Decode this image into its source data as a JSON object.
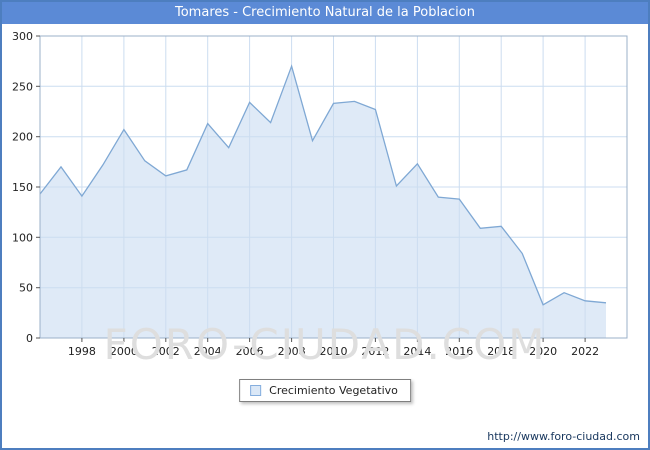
{
  "title": "Tomares - Crecimiento Natural de la Poblacion",
  "legend": {
    "label": "Crecimiento Vegetativo"
  },
  "watermark": "FORO-CIUDAD.COM",
  "footer_url": "http://www.foro-ciudad.com",
  "colors": {
    "frame": "#4d7ebf",
    "titlebar_bg": "#5b8ad6",
    "titlebar_text": "#ffffff",
    "grid": "#ccddf0",
    "axis": "#9bb0c8",
    "line": "#7fa8d4",
    "fill": "#dfeaf7",
    "tick": "#555555",
    "label": "#222222"
  },
  "chart_data": {
    "type": "area",
    "title": "Tomares - Crecimiento Natural de la Poblacion",
    "series_name": "Crecimiento Vegetativo",
    "xlabel": "",
    "ylabel": "",
    "x": [
      1996,
      1997,
      1998,
      1999,
      2000,
      2001,
      2002,
      2003,
      2004,
      2005,
      2006,
      2007,
      2008,
      2009,
      2010,
      2011,
      2012,
      2013,
      2014,
      2015,
      2016,
      2017,
      2018,
      2019,
      2020,
      2021,
      2022,
      2023
    ],
    "values": [
      143,
      170,
      141,
      172,
      207,
      176,
      161,
      167,
      213,
      189,
      234,
      214,
      270,
      196,
      233,
      235,
      227,
      151,
      173,
      140,
      138,
      109,
      111,
      84,
      33,
      45,
      37,
      35
    ],
    "ylim": [
      0,
      300
    ],
    "xlim": [
      1996,
      2024
    ],
    "y_ticks": [
      0,
      50,
      100,
      150,
      200,
      250,
      300
    ],
    "x_ticks": [
      1998,
      2000,
      2002,
      2004,
      2006,
      2008,
      2010,
      2012,
      2014,
      2016,
      2018,
      2020,
      2022
    ],
    "grid": true,
    "legend_position": "bottom"
  }
}
